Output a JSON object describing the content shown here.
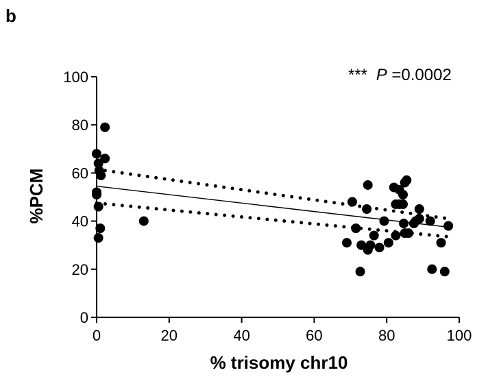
{
  "panel_label": "b",
  "chart_data": {
    "type": "scatter",
    "xlabel": "% trisomy chr10",
    "ylabel": "%PCM",
    "xlim": [
      0,
      100
    ],
    "ylim": [
      0,
      100
    ],
    "x_ticks": [
      "0",
      "20",
      "40",
      "60",
      "80",
      "100"
    ],
    "y_ticks": [
      "0",
      "20",
      "40",
      "60",
      "80",
      "100"
    ],
    "annotation": {
      "stars": "***",
      "p_italic": "P",
      "p_rest": "=0.0002"
    },
    "points": [
      {
        "x": 0.0,
        "y": 68
      },
      {
        "x": 0.5,
        "y": 64
      },
      {
        "x": 0.7,
        "y": 61
      },
      {
        "x": 1.2,
        "y": 59
      },
      {
        "x": 2.3,
        "y": 79
      },
      {
        "x": 2.3,
        "y": 66
      },
      {
        "x": 0.0,
        "y": 52
      },
      {
        "x": 0.0,
        "y": 51
      },
      {
        "x": 0.5,
        "y": 46
      },
      {
        "x": 1.0,
        "y": 37
      },
      {
        "x": 0.5,
        "y": 33
      },
      {
        "x": 13,
        "y": 40
      },
      {
        "x": 69,
        "y": 31
      },
      {
        "x": 70.5,
        "y": 48
      },
      {
        "x": 71.5,
        "y": 37
      },
      {
        "x": 72.7,
        "y": 19
      },
      {
        "x": 73,
        "y": 30
      },
      {
        "x": 74.5,
        "y": 45
      },
      {
        "x": 74.8,
        "y": 55
      },
      {
        "x": 74.8,
        "y": 28
      },
      {
        "x": 75.5,
        "y": 30
      },
      {
        "x": 76.5,
        "y": 34
      },
      {
        "x": 78,
        "y": 29
      },
      {
        "x": 79.3,
        "y": 40
      },
      {
        "x": 80.5,
        "y": 31
      },
      {
        "x": 82,
        "y": 54
      },
      {
        "x": 82.5,
        "y": 47
      },
      {
        "x": 82.5,
        "y": 34
      },
      {
        "x": 83.5,
        "y": 53
      },
      {
        "x": 83.5,
        "y": 47
      },
      {
        "x": 84.5,
        "y": 51
      },
      {
        "x": 84.5,
        "y": 47
      },
      {
        "x": 84.7,
        "y": 39
      },
      {
        "x": 85,
        "y": 56
      },
      {
        "x": 85,
        "y": 35
      },
      {
        "x": 85.5,
        "y": 57
      },
      {
        "x": 86,
        "y": 35
      },
      {
        "x": 87.5,
        "y": 39
      },
      {
        "x": 88,
        "y": 40
      },
      {
        "x": 89,
        "y": 45
      },
      {
        "x": 89,
        "y": 41
      },
      {
        "x": 92,
        "y": 40
      },
      {
        "x": 92.5,
        "y": 20
      },
      {
        "x": 95,
        "y": 31
      },
      {
        "x": 96,
        "y": 19
      },
      {
        "x": 97,
        "y": 38
      }
    ],
    "regression": {
      "x": [
        0,
        97
      ],
      "y": [
        54.5,
        37.5
      ]
    },
    "ci_upper": {
      "x": [
        0,
        97
      ],
      "y": [
        61.5,
        41
      ]
    },
    "ci_lower": {
      "x": [
        0,
        97
      ],
      "y": [
        47.5,
        33.5
      ]
    }
  }
}
